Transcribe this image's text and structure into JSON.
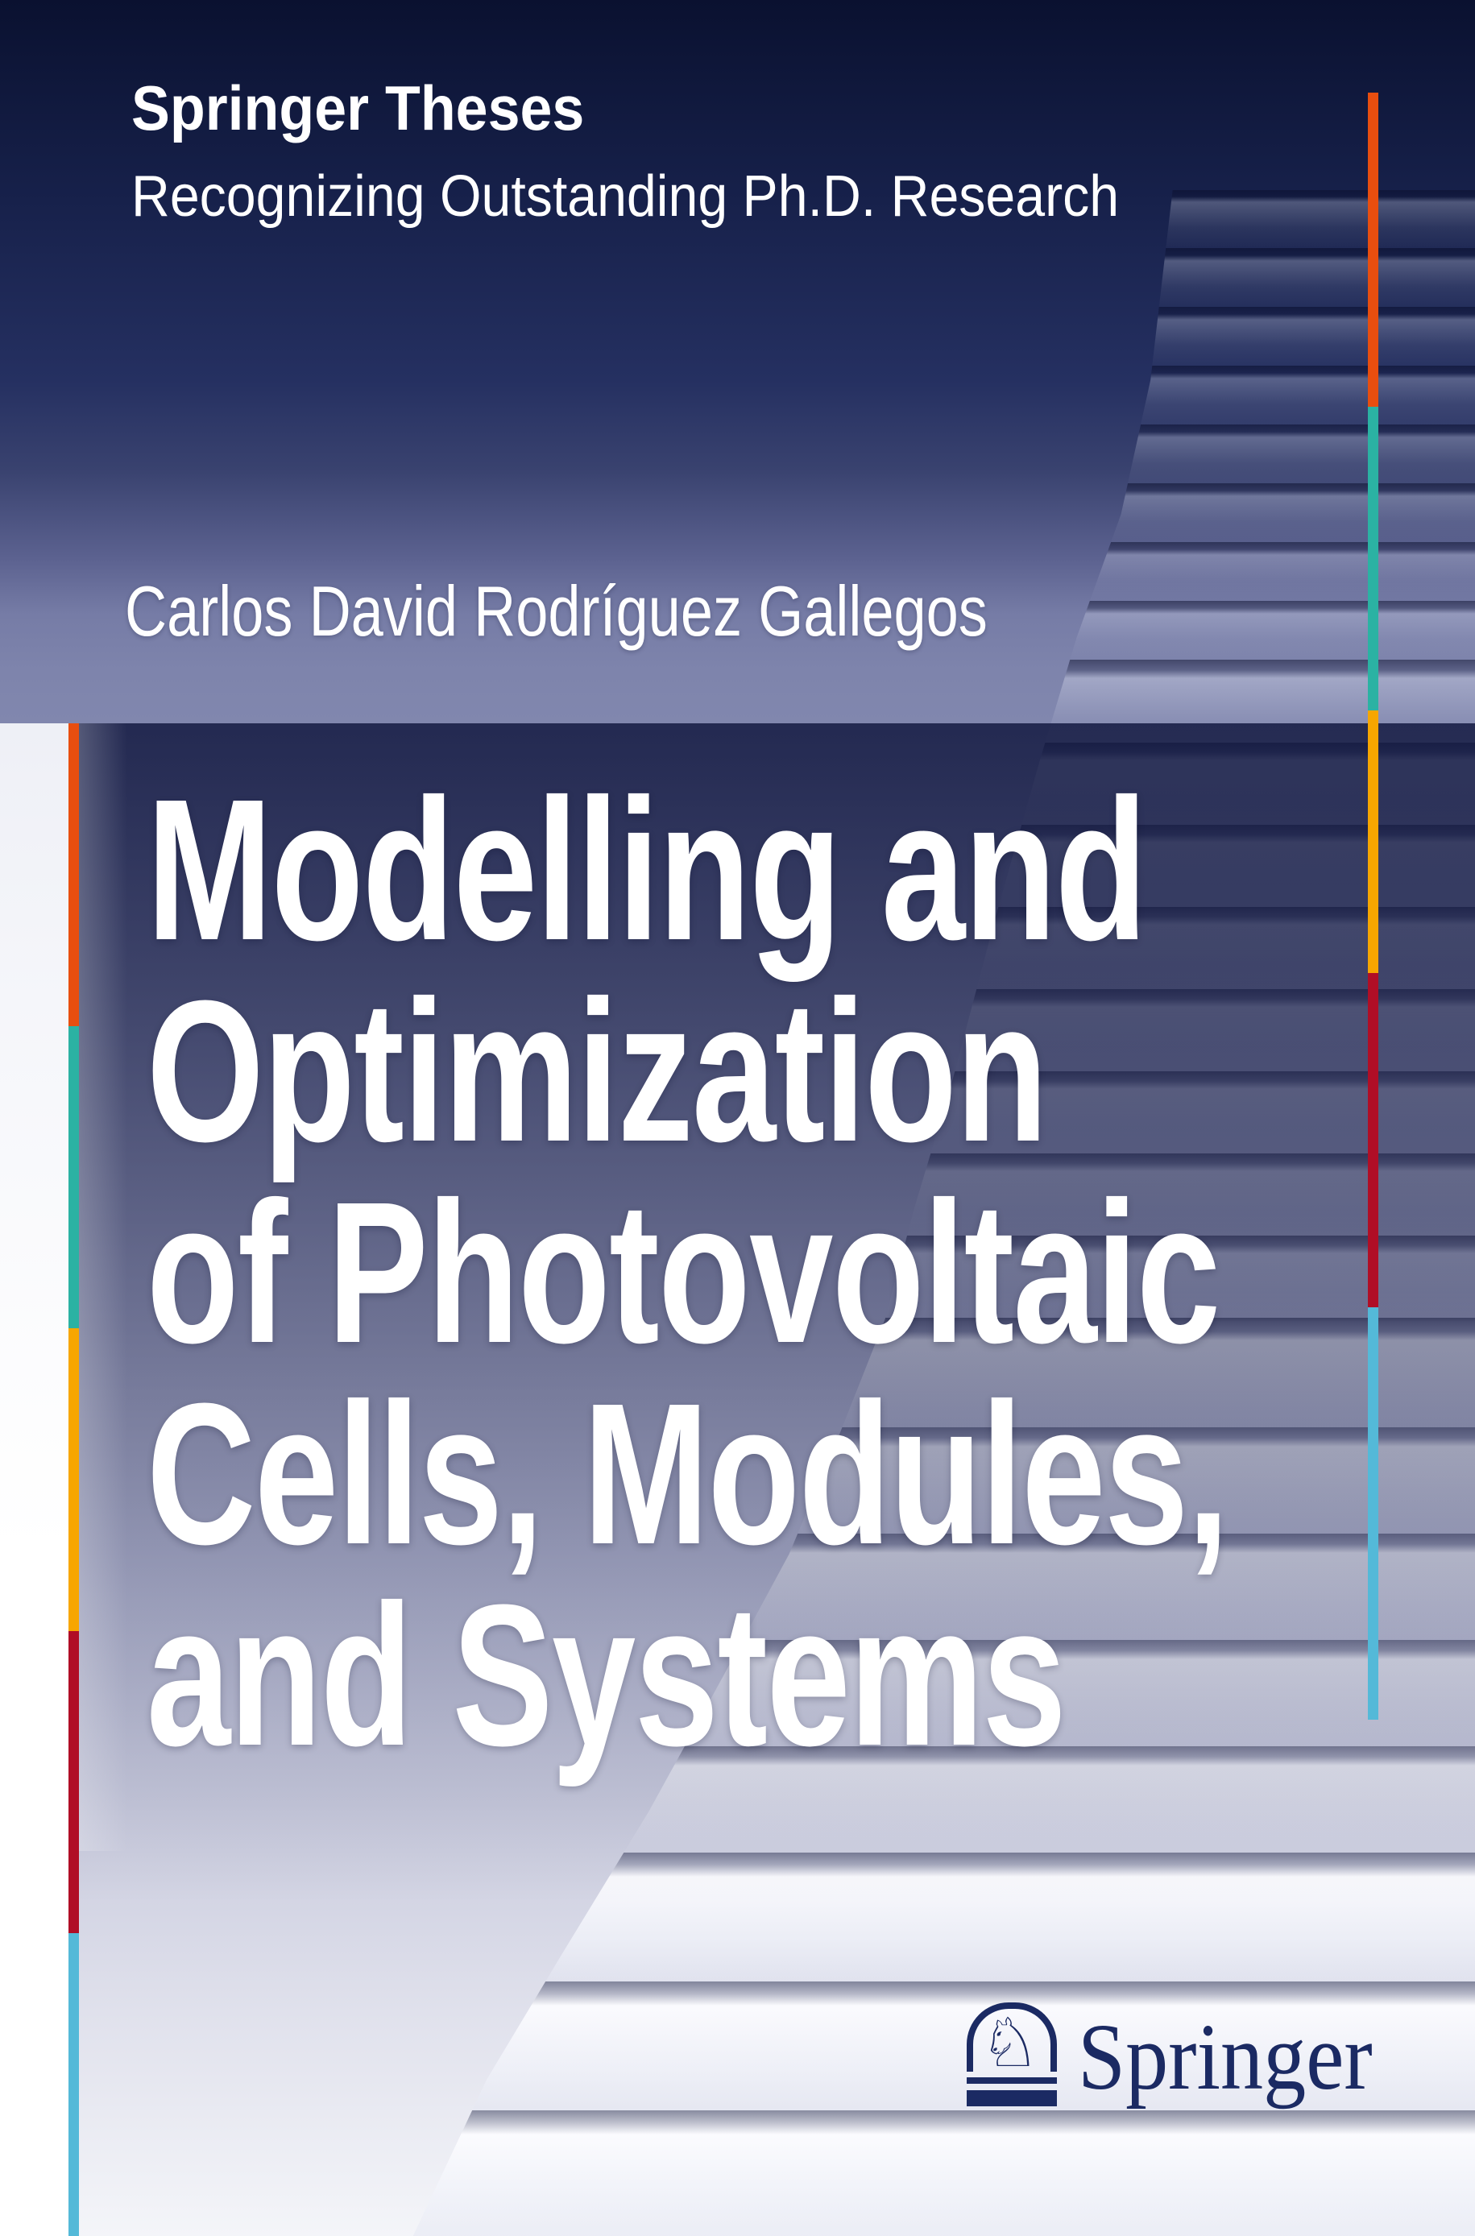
{
  "series": {
    "name": "Springer Theses",
    "tagline": "Recognizing Outstanding Ph.D. Research"
  },
  "author": {
    "name": "Carlos David Rodríguez Gallegos"
  },
  "title": {
    "full": "Modelling and Optimization of Photovoltaic Cells, Modules, and Systems",
    "lines": [
      "Modelling and",
      "Optimization",
      "of Photovoltaic",
      "Cells, Modules,",
      "and Systems"
    ]
  },
  "publisher": {
    "wordmark": "Springer",
    "horse_glyph": "♘"
  },
  "colors": {
    "accent_bar": [
      "#e84e0f",
      "#2bb2a3",
      "#f7a600",
      "#b00e26",
      "#54b9d8"
    ],
    "logo_navy": "#1b2a63",
    "panel_navy": "#2a3163",
    "title_text": "#ffffff"
  }
}
